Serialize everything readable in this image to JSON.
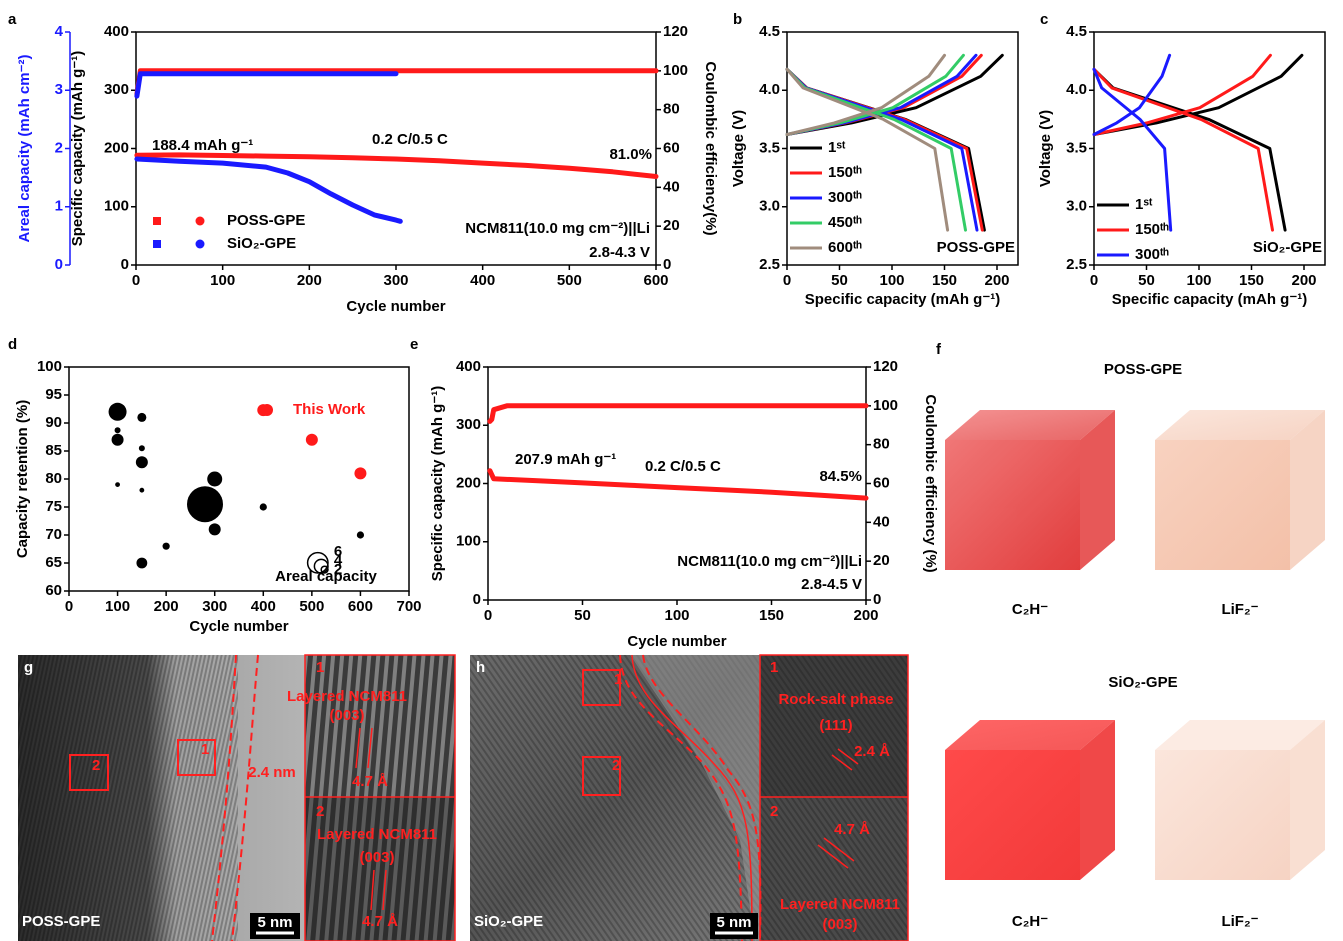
{
  "chart_data": [
    {
      "panel": "a",
      "type": "line",
      "xlabel": "Cycle number",
      "ylabel": "Specific capacity (mAh g⁻¹)",
      "y2label": "Coulombic efficiency(%)",
      "y3label": "Areal capacity (mAh cm⁻²)",
      "y3color": "#1a1aff",
      "xlim": [
        0,
        600
      ],
      "xticks": [
        0,
        100,
        200,
        300,
        400,
        500,
        600
      ],
      "ylim": [
        0,
        400
      ],
      "yticks": [
        0,
        100,
        200,
        300,
        400
      ],
      "y2lim": [
        0,
        120
      ],
      "y2ticks": [
        0,
        20,
        40,
        60,
        80,
        100,
        120
      ],
      "y3lim": [
        0,
        4
      ],
      "y3ticks": [
        0,
        1,
        2,
        3,
        4
      ],
      "annotations": [
        "188.4 mAh g⁻¹",
        "0.2 C/0.5 C",
        "81.0%",
        "NCM811(10.0 mg cm⁻²)||Li",
        "2.8-4.3 V"
      ],
      "series": [
        {
          "name": "POSS-GPE",
          "color": "#ff1a1a",
          "x": [
            1,
            50,
            100,
            150,
            200,
            250,
            300,
            350,
            400,
            450,
            500,
            550,
            600
          ],
          "values": [
            188.4,
            189,
            188,
            187,
            186,
            184,
            182,
            179,
            175,
            171,
            166,
            160,
            152
          ]
        },
        {
          "name": "SiO₂-GPE",
          "color": "#1a1aff",
          "x": [
            1,
            50,
            100,
            150,
            175,
            200,
            225,
            250,
            275,
            300,
            305
          ],
          "values": [
            182,
            178,
            175,
            168,
            158,
            143,
            122,
            103,
            86,
            77,
            75
          ]
        },
        {
          "color": "#ff1a1a",
          "axis": "y2",
          "x": [
            1,
            5,
            100,
            200,
            300,
            400,
            500,
            600
          ],
          "values": [
            88,
            100,
            100,
            100,
            100,
            100,
            100,
            100
          ]
        },
        {
          "color": "#1a1aff",
          "axis": "y2",
          "x": [
            1,
            5,
            100,
            200,
            300
          ],
          "values": [
            87,
            98.5,
            98.5,
            98.5,
            98.5
          ]
        }
      ]
    },
    {
      "panel": "b",
      "type": "line",
      "xlabel": "Specific capacity (mAh g⁻¹)",
      "ylabel": "Voltage (V)",
      "xlim": [
        0,
        220
      ],
      "xticks": [
        0,
        50,
        100,
        150,
        200
      ],
      "ylim": [
        2.5,
        4.5
      ],
      "yticks": [
        2.5,
        {
          "value": 3,
          "label": "3.0"
        },
        3.5,
        {
          "value": 4,
          "label": "4.0"
        },
        4.5
      ],
      "annotations": [
        "POSS-GPE"
      ],
      "series": [
        {
          "name": "1ˢᵗ",
          "color": "#000000",
          "x": [
            0,
            61.5,
            123,
            184.5,
            205,
            null,
            0,
            18.8,
            112.8,
            173,
            188
          ],
          "values": [
            3.62,
            3.72,
            3.85,
            4.12,
            4.3,
            null,
            4.18,
            4.02,
            3.75,
            3.5,
            2.8
          ]
        },
        {
          "name": "150ᵗʰ",
          "color": "#ff1a1a",
          "x": [
            0,
            55.5,
            111,
            166.5,
            185,
            null,
            0,
            18.6,
            111.6,
            171.1,
            186
          ],
          "values": [
            3.62,
            3.72,
            3.85,
            4.12,
            4.3,
            null,
            4.18,
            4.02,
            3.75,
            3.5,
            2.8
          ]
        },
        {
          "name": "300ᵗʰ",
          "color": "#1a1aff",
          "x": [
            0,
            54,
            108,
            162,
            180,
            null,
            0,
            18.1,
            108.6,
            166.5,
            181
          ],
          "values": [
            3.62,
            3.72,
            3.85,
            4.12,
            4.3,
            null,
            4.18,
            4.02,
            3.75,
            3.5,
            2.8
          ]
        },
        {
          "name": "450ᵗʰ",
          "color": "#33cc66",
          "x": [
            0,
            50.4,
            100.8,
            151.2,
            168,
            null,
            0,
            17,
            102,
            156.4,
            170
          ],
          "values": [
            3.62,
            3.72,
            3.85,
            4.12,
            4.3,
            null,
            4.18,
            4.02,
            3.75,
            3.5,
            2.8
          ]
        },
        {
          "name": "600ᵗʰ",
          "color": "#a08c7d",
          "x": [
            0,
            45,
            90,
            135,
            150,
            null,
            0,
            15.3,
            91.8,
            140.8,
            153
          ],
          "values": [
            3.62,
            3.72,
            3.85,
            4.12,
            4.3,
            null,
            4.18,
            4.02,
            3.75,
            3.5,
            2.8
          ]
        }
      ]
    },
    {
      "panel": "c",
      "type": "line",
      "xlabel": "Specific capacity (mAh g⁻¹)",
      "ylabel": "Voltage (V)",
      "xlim": [
        0,
        220
      ],
      "xticks": [
        0,
        50,
        100,
        150,
        200
      ],
      "ylim": [
        2.5,
        4.5
      ],
      "yticks": [
        2.5,
        {
          "value": 3,
          "label": "3.0"
        },
        3.5,
        {
          "value": 4,
          "label": "4.0"
        },
        4.5
      ],
      "annotations": [
        "SiO₂-GPE"
      ],
      "series": [
        {
          "name": "1ˢᵗ",
          "color": "#000000",
          "x": [
            0,
            59.4,
            118.8,
            178.2,
            198,
            null,
            0,
            18.2,
            109.2,
            167.4,
            182
          ],
          "values": [
            3.62,
            3.72,
            3.85,
            4.12,
            4.3,
            null,
            4.18,
            4.02,
            3.75,
            3.5,
            2.8
          ]
        },
        {
          "name": "150ᵗʰ",
          "color": "#ff1a1a",
          "x": [
            0,
            50.4,
            100.8,
            151.2,
            168,
            null,
            0,
            17,
            102,
            156.4,
            170
          ],
          "values": [
            3.62,
            3.72,
            3.85,
            4.12,
            4.3,
            null,
            4.18,
            4.02,
            3.75,
            3.5,
            2.8
          ]
        },
        {
          "name": "300ᵗʰ",
          "color": "#1a1aff",
          "x": [
            0,
            21.6,
            43.2,
            64.8,
            72,
            null,
            0,
            7.3,
            43.8,
            67.2,
            73
          ],
          "values": [
            3.62,
            3.72,
            3.85,
            4.12,
            4.3,
            null,
            4.18,
            4.02,
            3.75,
            3.5,
            2.8
          ]
        }
      ]
    },
    {
      "panel": "d",
      "type": "scatter",
      "xlabel": "Cycle number",
      "ylabel": "Capacity retention (%)",
      "xlim": [
        0,
        700
      ],
      "xticks": [
        0,
        100,
        200,
        300,
        400,
        500,
        600,
        700
      ],
      "ylim": [
        60,
        100
      ],
      "yticks": [
        60,
        65,
        70,
        75,
        80,
        85,
        90,
        95,
        100
      ],
      "size_legend_label": "Areal capacity",
      "size_legend": [
        6,
        4,
        2
      ],
      "series": [
        {
          "name": "This Work",
          "color": "#ff1a1a",
          "x": [
            400,
            500,
            600
          ],
          "values": [
            92.3,
            87,
            81
          ],
          "sizes": [
            2,
            2,
            2
          ]
        },
        {
          "color": "#000000",
          "x": [
            100,
            100,
            100,
            100,
            150,
            150,
            150,
            150,
            150,
            200,
            280,
            300,
            300,
            400,
            600
          ],
          "values": [
            92,
            88.7,
            87,
            79,
            91,
            85.5,
            83,
            78,
            65,
            68,
            75.5,
            80,
            71,
            75,
            70
          ],
          "sizes": [
            3,
            1,
            2,
            0.8,
            1.5,
            1,
            2,
            0.8,
            1.8,
            1.2,
            6,
            2.5,
            2,
            1.2,
            1.2
          ]
        }
      ]
    },
    {
      "panel": "e",
      "type": "line",
      "xlabel": "Cycle number",
      "ylabel": "Specific capacity (mAh g⁻¹)",
      "y2label": "Coulombic efficiency (%)",
      "xlim": [
        0,
        200
      ],
      "xticks": [
        0,
        50,
        100,
        150,
        200
      ],
      "ylim": [
        0,
        400
      ],
      "yticks": [
        0,
        100,
        200,
        300,
        400
      ],
      "y2lim": [
        0,
        120
      ],
      "y2ticks": [
        0,
        20,
        40,
        60,
        80,
        100,
        120
      ],
      "annotations": [
        "207.9 mAh g⁻¹",
        "0.2 C/0.5 C",
        "84.5%",
        "NCM811(10.0 mg cm⁻²)||Li",
        "2.8-4.5 V"
      ],
      "series": [
        {
          "color": "#ff1a1a",
          "x": [
            1,
            3,
            25,
            50,
            75,
            100,
            125,
            150,
            175,
            200
          ],
          "values": [
            222,
            208,
            205,
            201,
            197,
            193,
            189,
            185,
            180,
            175
          ]
        },
        {
          "color": "#ff1a1a",
          "axis": "y2",
          "x": [
            1,
            2,
            3,
            10,
            50,
            100,
            150,
            200
          ],
          "values": [
            92,
            93,
            98,
            100,
            100,
            100,
            100,
            100
          ]
        }
      ]
    }
  ],
  "figure_panels": {
    "f": {
      "letter": "f",
      "groups": [
        {
          "title": "POSS-GPE",
          "labels": [
            "C₂H⁻",
            "LiF₂⁻"
          ]
        },
        {
          "title": "SiO₂-GPE",
          "labels": [
            "C₂H⁻",
            "LiF₂⁻"
          ]
        }
      ]
    },
    "g": {
      "letter": "g",
      "sample": "POSS-GPE",
      "scale_bar": "5 nm",
      "interface": "2.4 nm",
      "boxes": [
        "1",
        "2"
      ],
      "insets": [
        {
          "number": "1",
          "phase": "Layered NCM811",
          "plane": "(003)",
          "spacing": "4.7 Å"
        },
        {
          "number": "2",
          "phase": "Layered NCM811",
          "plane": "(003)",
          "spacing": "4.7 Å"
        }
      ]
    },
    "h": {
      "letter": "h",
      "sample": "SiO₂-GPE",
      "scale_bar": "5 nm",
      "boxes": [
        "1",
        "2"
      ],
      "insets": [
        {
          "number": "1",
          "phase": "Rock-salt phase",
          "plane": "(111)",
          "spacing": "2.4 Å"
        },
        {
          "number": "2",
          "phase": "Layered NCM811",
          "plane": "(003)",
          "spacing": "4.7 Å"
        }
      ]
    }
  }
}
